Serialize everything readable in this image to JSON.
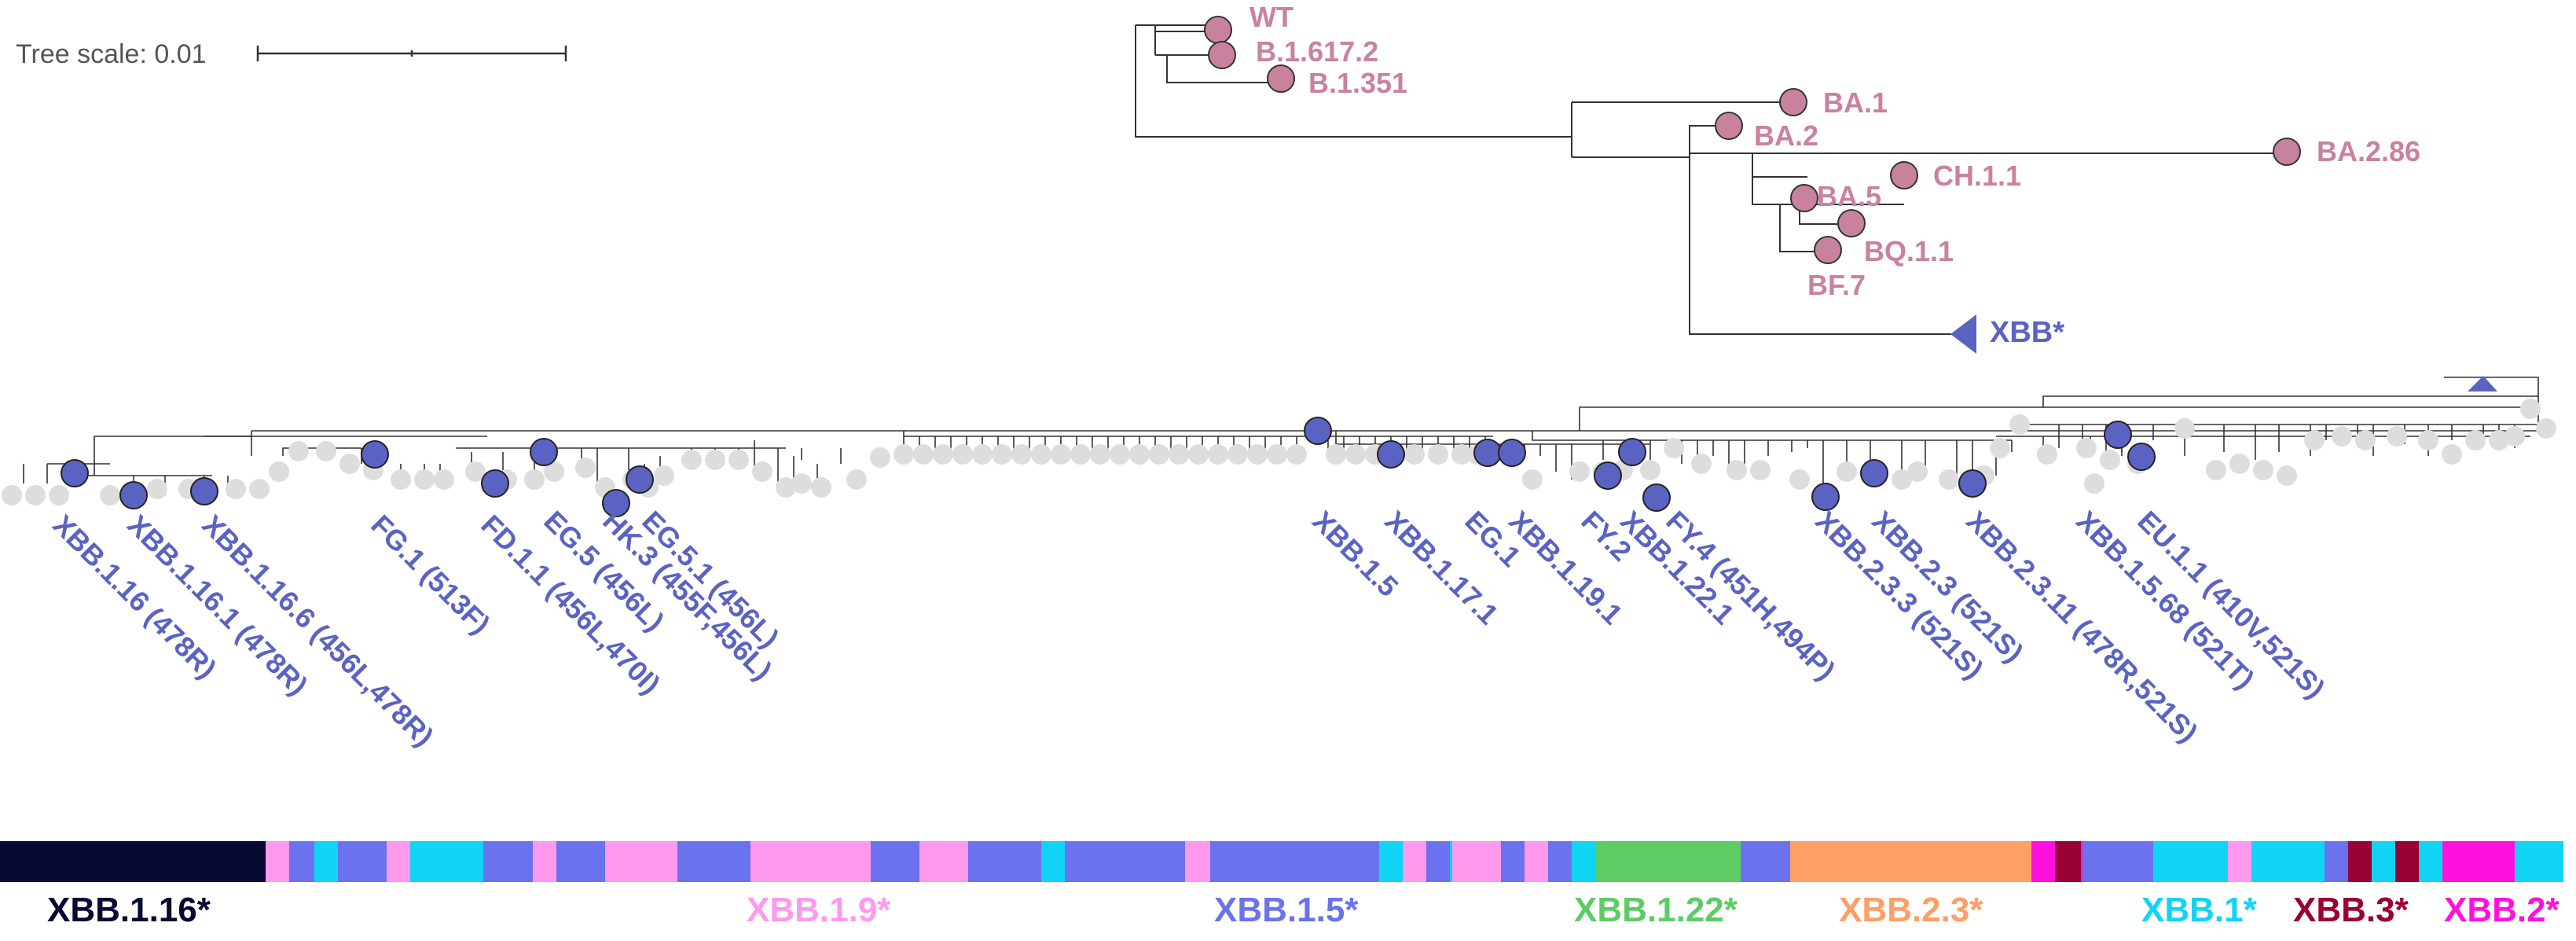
{
  "scale": {
    "label": "Tree scale: 0.01"
  },
  "colors": {
    "branch": "#333333",
    "top_node": "#c9829e",
    "xbb_node": "#5b63c2",
    "leaf": "#dddddd"
  },
  "top_tips": [
    {
      "id": "wt",
      "label": "WT"
    },
    {
      "id": "b16172",
      "label": "B.1.617.2"
    },
    {
      "id": "b1351",
      "label": "B.1.351"
    },
    {
      "id": "ba1",
      "label": "BA.1"
    },
    {
      "id": "ba2",
      "label": "BA.2"
    },
    {
      "id": "ba286",
      "label": "BA.2.86"
    },
    {
      "id": "ch11",
      "label": "CH.1.1"
    },
    {
      "id": "ba5",
      "label": "BA.5"
    },
    {
      "id": "bq11",
      "label": "BQ.1.1"
    },
    {
      "id": "bf7",
      "label": "BF.7"
    }
  ],
  "xbb_collapsed_label": "XBB*",
  "xbb_labels": [
    "XBB.1.16 (478R)",
    "XBB.1.16.1 (478R)",
    "XBB.1.16.6 (456L,478R)",
    "FG.1 (513F)",
    "FD.1.1 (456L,470I)",
    "EG.5 (456L)",
    "HK.3 (455F,456L)",
    "EG.5.1 (456L)",
    "XBB.1.5",
    "XBB.1.17.1",
    "EG.1",
    "XBB.1.19.1",
    "FY.2",
    "XBB.1.22.1",
    "FY.4 (451H,494P)",
    "XBB.2.3.3 (521S)",
    "XBB.2.3 (521S)",
    "XBB.2.3.11 (478R,521S)",
    "XBB.1.5.68 (521T)",
    "EU.1.1 (410V,521S)"
  ],
  "lineage_bar": {
    "segments": [
      [
        "#070a33",
        0,
        338
      ],
      [
        "#ff99ee",
        338,
        368
      ],
      [
        "#6b72ee",
        368,
        400
      ],
      [
        "#11d4f5",
        400,
        430
      ],
      [
        "#6b72ee",
        430,
        492
      ],
      [
        "#ff99ee",
        492,
        522
      ],
      [
        "#11d4f5",
        522,
        615
      ],
      [
        "#6b72ee",
        615,
        678
      ],
      [
        "#ff99ee",
        678,
        708
      ],
      [
        "#6b72ee",
        708,
        770
      ],
      [
        "#ff99ee",
        770,
        862
      ],
      [
        "#6b72ee",
        862,
        955
      ],
      [
        "#ff99ee",
        955,
        1108
      ],
      [
        "#6b72ee",
        1108,
        1170
      ],
      [
        "#ff99ee",
        1170,
        1232
      ],
      [
        "#6b72ee",
        1232,
        1325
      ],
      [
        "#11d4f5",
        1325,
        1355
      ],
      [
        "#6b72ee",
        1355,
        1508
      ],
      [
        "#ff99ee",
        1508,
        1540
      ],
      [
        "#6b72ee",
        1540,
        1755
      ],
      [
        "#11d4f5",
        1755,
        1785
      ],
      [
        "#ff99ee",
        1785,
        1815
      ],
      [
        "#6b72ee",
        1815,
        1845
      ],
      [
        "#11d4f5",
        1845,
        1848
      ],
      [
        "#ff99ee",
        1848,
        1910
      ],
      [
        "#6b72ee",
        1910,
        1940
      ],
      [
        "#ff99ee",
        1940,
        1970
      ],
      [
        "#6b72ee",
        1970,
        2000
      ],
      [
        "#11d4f5",
        2000,
        2030
      ],
      [
        "#5ccc64",
        2030,
        2215
      ],
      [
        "#6b72ee",
        2215,
        2278
      ],
      [
        "#ff9f66",
        2278,
        2585
      ],
      [
        "#ff11dd",
        2585,
        2615
      ],
      [
        "#990033",
        2615,
        2648
      ],
      [
        "#ff11dd",
        2648,
        2650
      ],
      [
        "#6b72ee",
        2650,
        2740
      ],
      [
        "#11d4f5",
        2740,
        2835
      ],
      [
        "#ff99ee",
        2835,
        2865
      ],
      [
        "#11d4f5",
        2865,
        2958
      ],
      [
        "#6b72ee",
        2958,
        2988
      ],
      [
        "#990033",
        2988,
        3018
      ],
      [
        "#11d4f5",
        3018,
        3048
      ],
      [
        "#990033",
        3048,
        3078
      ],
      [
        "#11d4f5",
        3078,
        3108
      ],
      [
        "#ff11dd",
        3108,
        3200
      ],
      [
        "#11d4f5",
        3200,
        3262
      ]
    ],
    "labels": [
      {
        "text": "XBB.1.16*",
        "color": "#070a33"
      },
      {
        "text": "XBB.1.9*",
        "color": "#ff99ee"
      },
      {
        "text": "XBB.1.5*",
        "color": "#6b72ee"
      },
      {
        "text": "XBB.1.22*",
        "color": "#5ccc64"
      },
      {
        "text": "XBB.2.3*",
        "color": "#ff9f66"
      },
      {
        "text": "XBB.1*",
        "color": "#11d4f5"
      },
      {
        "text": "XBB.3*",
        "color": "#990033"
      },
      {
        "text": "XBB.2*",
        "color": "#ff11dd"
      }
    ]
  }
}
